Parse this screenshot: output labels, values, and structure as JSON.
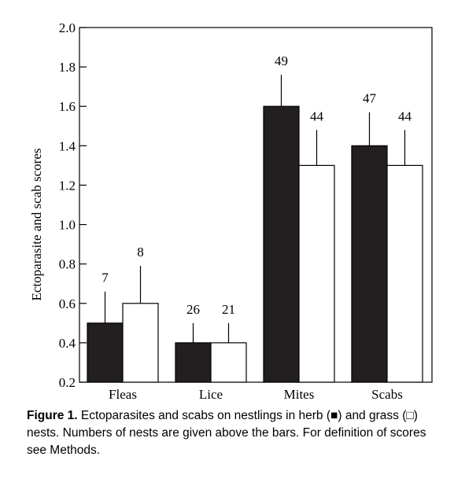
{
  "chart_data": {
    "type": "bar",
    "categories": [
      "Fleas",
      "Lice",
      "Mites",
      "Scabs"
    ],
    "ylabel": "Ectoparasite and scab scores",
    "ylim": [
      0.2,
      2.0
    ],
    "yticks": [
      "0.2",
      "0.4",
      "0.6",
      "0.8",
      "1.0",
      "1.2",
      "1.4",
      "1.6",
      "1.8",
      "2.0"
    ],
    "series": [
      {
        "colorHex": "#231f20",
        "values": [
          0.5,
          0.4,
          1.6,
          1.4
        ],
        "error_upper": [
          0.66,
          0.5,
          1.76,
          1.57
        ],
        "n": [
          "7",
          "26",
          "49",
          "47"
        ]
      },
      {
        "colorHex": "#ffffff",
        "values": [
          0.6,
          0.4,
          1.3,
          1.3
        ],
        "error_upper": [
          0.79,
          0.5,
          1.48,
          1.48
        ],
        "n": [
          "8",
          "21",
          "44",
          "44"
        ]
      }
    ],
    "grid": false,
    "legend": "none"
  },
  "caption": {
    "label": "Figure 1.",
    "text": "Ectoparasites and scabs on nestlings in herb (■) and grass (□) nests. Numbers of nests are given above the bars. For definition of scores see Methods."
  }
}
